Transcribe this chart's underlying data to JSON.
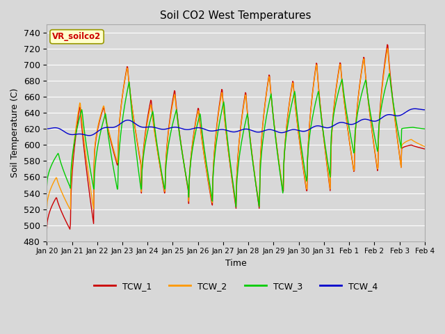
{
  "title": "Soil CO2 West Temperatures",
  "xlabel": "Time",
  "ylabel": "Soil Temperature (C)",
  "ylim": [
    480,
    750
  ],
  "yticks": [
    480,
    500,
    520,
    540,
    560,
    580,
    600,
    620,
    640,
    660,
    680,
    700,
    720,
    740
  ],
  "legend_label": "VR_soilco2",
  "series_names": [
    "TCW_1",
    "TCW_2",
    "TCW_3",
    "TCW_4"
  ],
  "series_colors": [
    "#cc0000",
    "#ff9900",
    "#00cc00",
    "#0000cc"
  ],
  "xtick_labels": [
    "Jan 20",
    "Jan 21",
    "Jan 22",
    "Jan 23",
    "Jan 24",
    "Jan 25",
    "Jan 26",
    "Jan 27",
    "Jan 28",
    "Jan 29",
    "Jan 30",
    "Jan 31",
    "Feb 1",
    "Feb 2",
    "Feb 3",
    "Feb 4"
  ],
  "background_color": "#d8d8d8",
  "grid_color": "#ffffff",
  "fig_bg": "#d8d8d8"
}
